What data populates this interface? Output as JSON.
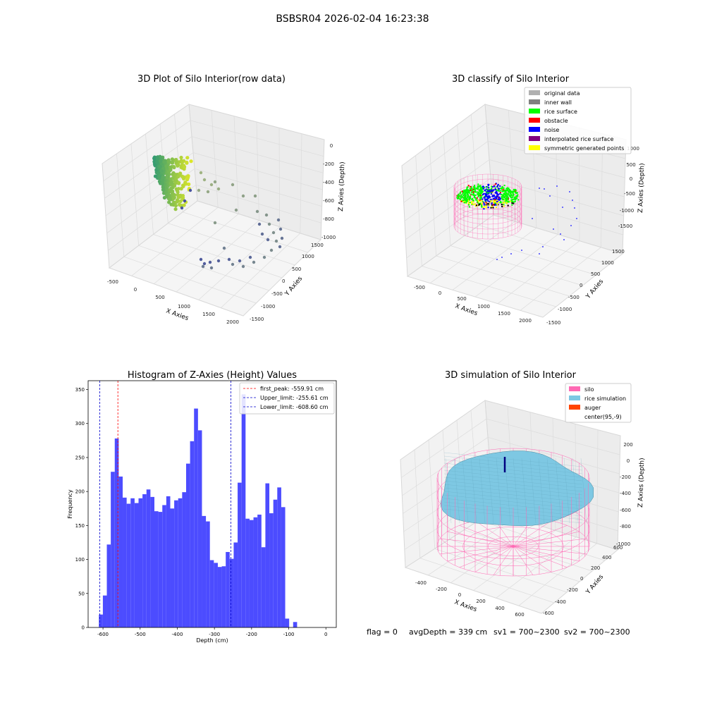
{
  "suptitle": "BSBSR04 2026-02-04 16:23:38",
  "footer": {
    "flag": "flag = 0",
    "avg": "avgDepth = 339 cm",
    "sv1": "sv1 = 700~2300",
    "sv2": "sv2 = 700~2300"
  },
  "colors": {
    "hist_bar": "#4c4cff",
    "peak_line": "#ff0000",
    "limit_line": "#0000cc",
    "silo": "#ff69b4",
    "rice": "#7ec8e3",
    "auger": "#ff4500",
    "legend_original": "#b0b0b0",
    "legend_wall": "#808080",
    "legend_rice": "#00ff00",
    "legend_obstacle": "#ff0000",
    "legend_noise": "#0000ff",
    "legend_interp": "#800080",
    "legend_sym": "#ffff00"
  },
  "chart_data": [
    {
      "type": "scatter",
      "title": "3D Plot of Silo Interior(row data)",
      "xlabel": "X Axies",
      "ylabel": "Y Axies",
      "zlabel": "Z Axies (Depth)",
      "x_ticks": [
        "-500",
        "0",
        "500",
        "1000",
        "1500",
        "2000"
      ],
      "y_ticks": [
        "-1500",
        "-1000",
        "-500",
        "0",
        "500",
        "1000",
        "1500"
      ],
      "z_ticks": [
        "0",
        "-200",
        "-400",
        "-600",
        "-800",
        "-1000"
      ]
    },
    {
      "type": "scatter",
      "title": "3D classify of Silo Interior",
      "xlabel": "X Axies",
      "ylabel": "Y Axies",
      "zlabel": "Z Axies (Depth)",
      "x_ticks": [
        "-500",
        "0",
        "500",
        "1000",
        "1500",
        "2000"
      ],
      "y_ticks": [
        "-1500",
        "-1000",
        "-500",
        "0",
        "500",
        "1000",
        "1500"
      ],
      "z_ticks": [
        "1000",
        "500",
        "0",
        "-500",
        "-1000",
        "-1500"
      ],
      "legend": [
        "original data",
        "inner wall",
        "rice surface",
        "obstacle",
        "noise",
        "interpolated rice surface",
        "symmetric generated points"
      ],
      "legend_position": "top-right"
    },
    {
      "type": "bar",
      "title": "Histogram of Z-Axies (Height) Values",
      "xlabel": "Depth (cm)",
      "ylabel": "Frequency",
      "xlim": [
        -640,
        28
      ],
      "ylim": [
        0,
        363
      ],
      "x_ticks": [
        -600,
        -500,
        -400,
        -300,
        -200,
        -100,
        0
      ],
      "y_ticks": [
        0,
        50,
        100,
        150,
        200,
        250,
        300,
        350
      ],
      "bin_start": -611,
      "bin_width": 10.67,
      "values": [
        19,
        47,
        122,
        229,
        278,
        222,
        191,
        182,
        190,
        183,
        190,
        196,
        203,
        192,
        171,
        170,
        180,
        193,
        175,
        187,
        190,
        199,
        241,
        274,
        322,
        290,
        164,
        156,
        99,
        95,
        89,
        90,
        111,
        101,
        125,
        213,
        343,
        160,
        158,
        162,
        166,
        118,
        212,
        168,
        188,
        206,
        177,
        13,
        0,
        8
      ],
      "lines": [
        {
          "label": "first_peak: -559.91 cm",
          "x": -559.91,
          "color": "red"
        },
        {
          "label": "Upper_limit: -255.61 cm",
          "x": -255.61,
          "color": "blue"
        },
        {
          "label": "Lower_limit: -608.60 cm",
          "x": -608.6,
          "color": "blue"
        }
      ],
      "legend_position": "top-right"
    },
    {
      "type": "surface",
      "title": "3D simulation of Silo Interior",
      "xlabel": "X Axies",
      "ylabel": "Y Axies",
      "zlabel": "Z Axies (Depth)",
      "x_ticks": [
        "-400",
        "-200",
        "0",
        "200",
        "400",
        "600"
      ],
      "y_ticks": [
        "-600",
        "-400",
        "-200",
        "0",
        "200",
        "400",
        "600"
      ],
      "z_ticks": [
        "200",
        "0",
        "-200",
        "-400",
        "-600",
        "-800",
        "-1000"
      ],
      "legend": [
        "silo",
        "rice simulation",
        "auger",
        "center(95,-9)"
      ],
      "legend_position": "top-right"
    }
  ]
}
